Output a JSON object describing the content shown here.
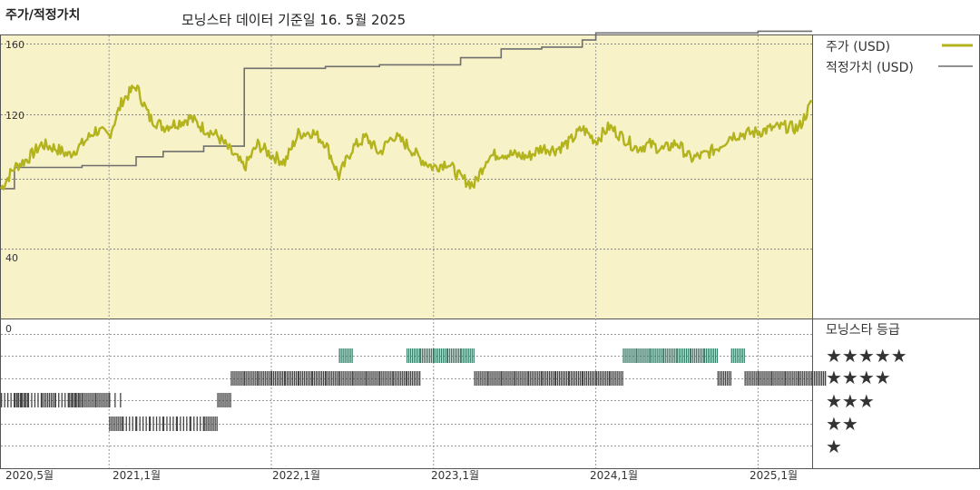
{
  "header": {
    "title": "주가/적정가치",
    "subtitle": "모닝스타 데이터 기준일 16. 5월 2025"
  },
  "legend": {
    "price_label": "주가 (USD)",
    "fair_value_label": "적정가치 (USD)",
    "rating_title": "모닝스타 등급"
  },
  "colors": {
    "panel_bg": "#f7f2c8",
    "price": "#b3b31e",
    "fair_value": "#6f6f6f",
    "rating_5": "#3a7f6a",
    "rating_other": "#444444"
  },
  "chart_data": {
    "type": "line",
    "title": "주가/적정가치",
    "subtitle": "모닝스타 데이터 기준일 16. 5월 2025",
    "y_ticks": [
      "160",
      "120",
      "40"
    ],
    "y_range": [
      0,
      170
    ],
    "x_ticks": [
      "2020,5월",
      "2021,1월",
      "2022,1월",
      "2023,1월",
      "2024,1월",
      "2025,1월"
    ],
    "x_range": [
      "2020-05",
      "2025-05"
    ],
    "grid": true,
    "legend_position": "right",
    "series": [
      {
        "name": "주가 (USD)",
        "points": [
          [
            "2020-05",
            78
          ],
          [
            "2020-06",
            90
          ],
          [
            "2020-07",
            95
          ],
          [
            "2020-08",
            103
          ],
          [
            "2020-09",
            101
          ],
          [
            "2020-10",
            97
          ],
          [
            "2020-11",
            103
          ],
          [
            "2020-12",
            111
          ],
          [
            "2021-01",
            108
          ],
          [
            "2021-02",
            128
          ],
          [
            "2021-03",
            136
          ],
          [
            "2021-04",
            118
          ],
          [
            "2021-05",
            113
          ],
          [
            "2021-06",
            115
          ],
          [
            "2021-07",
            118
          ],
          [
            "2021-08",
            112
          ],
          [
            "2021-09",
            108
          ],
          [
            "2021-10",
            99
          ],
          [
            "2021-11",
            90
          ],
          [
            "2021-12",
            103
          ],
          [
            "2022-01",
            97
          ],
          [
            "2022-02",
            93
          ],
          [
            "2022-03",
            109
          ],
          [
            "2022-04",
            110
          ],
          [
            "2022-05",
            104
          ],
          [
            "2022-06",
            85
          ],
          [
            "2022-07",
            101
          ],
          [
            "2022-08",
            107
          ],
          [
            "2022-09",
            98
          ],
          [
            "2022-10",
            108
          ],
          [
            "2022-11",
            103
          ],
          [
            "2022-12",
            95
          ],
          [
            "2023-01",
            90
          ],
          [
            "2023-02",
            93
          ],
          [
            "2023-03",
            84
          ],
          [
            "2023-04",
            80
          ],
          [
            "2023-05",
            96
          ],
          [
            "2023-06",
            98
          ],
          [
            "2023-07",
            97
          ],
          [
            "2023-08",
            96
          ],
          [
            "2023-09",
            101
          ],
          [
            "2023-10",
            100
          ],
          [
            "2023-11",
            104
          ],
          [
            "2023-12",
            112
          ],
          [
            "2024-01",
            105
          ],
          [
            "2024-02",
            113
          ],
          [
            "2024-03",
            107
          ],
          [
            "2024-04",
            101
          ],
          [
            "2024-05",
            103
          ],
          [
            "2024-06",
            100
          ],
          [
            "2024-07",
            104
          ],
          [
            "2024-08",
            95
          ],
          [
            "2024-09",
            97
          ],
          [
            "2024-10",
            101
          ],
          [
            "2024-11",
            108
          ],
          [
            "2024-12",
            109
          ],
          [
            "2025-01",
            110
          ],
          [
            "2025-02",
            112
          ],
          [
            "2025-03",
            113
          ],
          [
            "2025-04",
            112
          ],
          [
            "2025-05",
            127
          ]
        ]
      },
      {
        "name": "적정가치 (USD)",
        "points": [
          [
            "2020-05",
            78
          ],
          [
            "2020-06",
            90
          ],
          [
            "2020-08",
            90
          ],
          [
            "2020-11",
            91
          ],
          [
            "2021-01",
            91
          ],
          [
            "2021-03",
            96
          ],
          [
            "2021-05",
            99
          ],
          [
            "2021-08",
            102
          ],
          [
            "2021-10",
            102
          ],
          [
            "2021-11",
            146
          ],
          [
            "2022-01",
            146
          ],
          [
            "2022-05",
            147
          ],
          [
            "2022-09",
            148
          ],
          [
            "2023-01",
            148
          ],
          [
            "2023-03",
            152
          ],
          [
            "2023-06",
            157
          ],
          [
            "2023-09",
            158
          ],
          [
            "2023-12",
            162
          ],
          [
            "2024-01",
            166
          ],
          [
            "2024-06",
            166
          ],
          [
            "2025-01",
            167
          ],
          [
            "2025-05",
            167
          ]
        ]
      }
    ],
    "ratings": {
      "rows": [
        "★★★★★",
        "★★★★",
        "★★★",
        "★★",
        "★"
      ],
      "bars": [
        [
          "2020-05",
          3,
          2
        ],
        [
          "2020-06",
          3,
          2
        ],
        [
          "2020-06",
          3,
          3
        ],
        [
          "2020-07",
          3,
          2
        ],
        [
          "2020-08",
          3,
          3
        ],
        [
          "2020-09",
          3,
          2
        ],
        [
          "2020-10",
          3,
          3
        ],
        [
          "2020-10",
          3,
          2
        ],
        [
          "2020-11",
          3,
          3
        ],
        [
          "2020-12",
          3,
          3
        ],
        [
          "2021-01",
          2,
          3
        ],
        [
          "2021-01",
          3,
          1
        ],
        [
          "2021-02",
          2,
          2
        ],
        [
          "2021-03",
          2,
          2
        ],
        [
          "2021-04",
          2,
          2
        ],
        [
          "2021-05",
          2,
          2
        ],
        [
          "2021-06",
          2,
          2
        ],
        [
          "2021-07",
          2,
          2
        ],
        [
          "2021-08",
          2,
          3
        ],
        [
          "2021-09",
          3,
          3
        ],
        [
          "2021-10",
          4,
          3
        ],
        [
          "2021-11",
          4,
          3
        ],
        [
          "2021-12",
          4,
          3
        ],
        [
          "2022-01",
          4,
          3
        ],
        [
          "2022-02",
          4,
          3
        ],
        [
          "2022-03",
          4,
          3
        ],
        [
          "2022-04",
          4,
          3
        ],
        [
          "2022-05",
          4,
          3
        ],
        [
          "2022-06",
          4,
          3
        ],
        [
          "2022-06",
          5,
          3
        ],
        [
          "2022-07",
          4,
          3
        ],
        [
          "2022-08",
          4,
          3
        ],
        [
          "2022-09",
          4,
          3
        ],
        [
          "2022-10",
          4,
          3
        ],
        [
          "2022-11",
          4,
          3
        ],
        [
          "2022-11",
          5,
          3
        ],
        [
          "2022-12",
          5,
          3
        ],
        [
          "2023-01",
          5,
          3
        ],
        [
          "2023-02",
          5,
          3
        ],
        [
          "2023-03",
          5,
          3
        ],
        [
          "2023-04",
          4,
          3
        ],
        [
          "2023-05",
          4,
          3
        ],
        [
          "2023-06",
          4,
          3
        ],
        [
          "2023-07",
          4,
          3
        ],
        [
          "2023-08",
          4,
          3
        ],
        [
          "2023-09",
          4,
          3
        ],
        [
          "2023-10",
          4,
          3
        ],
        [
          "2023-11",
          4,
          3
        ],
        [
          "2023-12",
          4,
          3
        ],
        [
          "2024-01",
          4,
          3
        ],
        [
          "2024-02",
          4,
          3
        ],
        [
          "2024-03",
          5,
          3
        ],
        [
          "2024-04",
          5,
          3
        ],
        [
          "2024-05",
          5,
          3
        ],
        [
          "2024-06",
          5,
          3
        ],
        [
          "2024-07",
          5,
          3
        ],
        [
          "2024-08",
          5,
          3
        ],
        [
          "2024-09",
          5,
          3
        ],
        [
          "2024-10",
          4,
          3
        ],
        [
          "2024-11",
          5,
          3
        ],
        [
          "2024-12",
          4,
          3
        ],
        [
          "2025-01",
          4,
          3
        ],
        [
          "2025-02",
          4,
          3
        ],
        [
          "2025-03",
          4,
          3
        ],
        [
          "2025-04",
          4,
          3
        ],
        [
          "2025-05",
          4,
          3
        ]
      ]
    }
  }
}
